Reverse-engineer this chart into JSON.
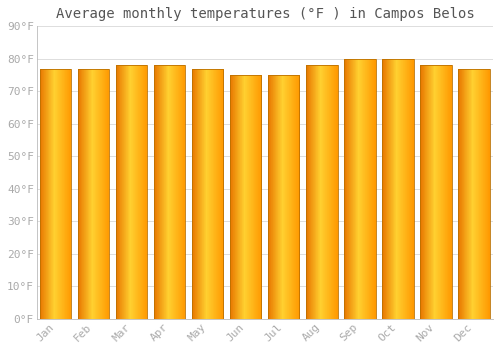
{
  "title": "Average monthly temperatures (°F ) in Campos Belos",
  "months": [
    "Jan",
    "Feb",
    "Mar",
    "Apr",
    "May",
    "Jun",
    "Jul",
    "Aug",
    "Sep",
    "Oct",
    "Nov",
    "Dec"
  ],
  "values": [
    77,
    77,
    78,
    78,
    77,
    75,
    75,
    78,
    80,
    80,
    78,
    77
  ],
  "ylim": [
    0,
    90
  ],
  "yticks": [
    0,
    10,
    20,
    30,
    40,
    50,
    60,
    70,
    80,
    90
  ],
  "bar_color_left": "#E87800",
  "bar_color_mid": "#FFD030",
  "bar_color_right": "#FF9800",
  "bar_edge_color": "#BB7000",
  "bg_color": "#FFFFFF",
  "grid_color": "#DDDDDD",
  "tick_label_color": "#AAAAAA",
  "title_color": "#555555",
  "title_fontsize": 10,
  "tick_fontsize": 8
}
